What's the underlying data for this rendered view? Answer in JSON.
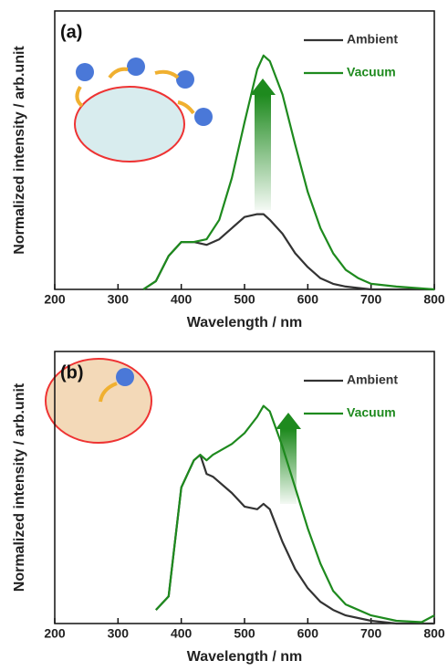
{
  "chart_data": [
    {
      "type": "line",
      "label": "(a)",
      "xlabel": "Wavelength / nm",
      "ylabel": "Normalized intensity / arb.unit",
      "xlim": [
        200,
        800
      ],
      "xticks": [
        200,
        300,
        400,
        500,
        600,
        700,
        800
      ],
      "ylim": [
        0,
        1
      ],
      "x": [
        340,
        360,
        380,
        400,
        420,
        440,
        460,
        480,
        500,
        520,
        530,
        540,
        560,
        580,
        600,
        620,
        640,
        660,
        680,
        700,
        740,
        800
      ],
      "series": [
        {
          "name": "Ambient",
          "color": "#333333",
          "values": [
            0,
            0.03,
            0.12,
            0.17,
            0.17,
            0.16,
            0.18,
            0.22,
            0.26,
            0.27,
            0.27,
            0.25,
            0.2,
            0.13,
            0.08,
            0.04,
            0.02,
            0.01,
            0.005,
            0,
            0,
            0
          ]
        },
        {
          "name": "Vacuum",
          "color": "#1e8a1e",
          "values": [
            0,
            0.03,
            0.12,
            0.17,
            0.17,
            0.18,
            0.25,
            0.4,
            0.6,
            0.79,
            0.84,
            0.82,
            0.7,
            0.52,
            0.35,
            0.22,
            0.13,
            0.07,
            0.04,
            0.02,
            0.01,
            0
          ]
        }
      ]
    },
    {
      "type": "line",
      "label": "(b)",
      "xlabel": "Wavelength / nm",
      "ylabel": "Normalized intensity / arb.unit",
      "xlim": [
        200,
        800
      ],
      "xticks": [
        200,
        300,
        400,
        500,
        600,
        700,
        800
      ],
      "ylim": [
        0,
        1
      ],
      "x": [
        360,
        380,
        400,
        410,
        420,
        430,
        440,
        450,
        480,
        500,
        520,
        530,
        540,
        560,
        580,
        600,
        620,
        640,
        660,
        700,
        740,
        780,
        800
      ],
      "series": [
        {
          "name": "Ambient",
          "color": "#333333",
          "values": [
            0.05,
            0.1,
            0.5,
            0.55,
            0.6,
            0.62,
            0.55,
            0.54,
            0.48,
            0.43,
            0.42,
            0.44,
            0.42,
            0.3,
            0.2,
            0.13,
            0.08,
            0.05,
            0.03,
            0.01,
            0,
            0,
            0
          ]
        },
        {
          "name": "Vacuum",
          "color": "#1e8a1e",
          "values": [
            0.05,
            0.1,
            0.5,
            0.55,
            0.6,
            0.62,
            0.6,
            0.62,
            0.66,
            0.7,
            0.76,
            0.8,
            0.78,
            0.65,
            0.5,
            0.35,
            0.22,
            0.12,
            0.07,
            0.03,
            0.01,
            0.005,
            0.03
          ]
        }
      ]
    }
  ]
}
